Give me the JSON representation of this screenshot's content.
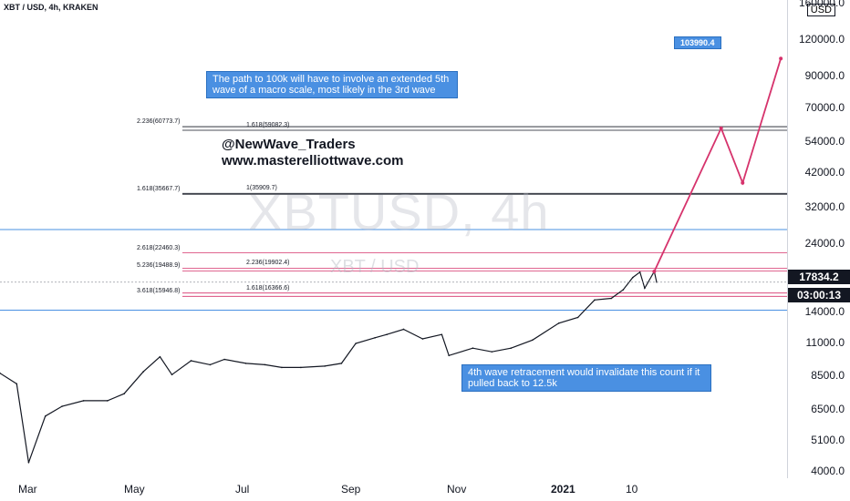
{
  "header": {
    "symbol": "XBT / USD, 4h, KRAKEN"
  },
  "watermark": {
    "big": "XBTUSD, 4h",
    "small": "XBT / USD"
  },
  "brand": {
    "handle": "@NewWave_Traders",
    "site": "www.masterelliottwave.com"
  },
  "annotations": {
    "top": "The path to 100k will have to involve an extended 5th wave of a macro scale, most likely in the 3rd wave",
    "bottom": "4th wave retracement would invalidate this count if it pulled back to 12.5k",
    "target": "103990.4"
  },
  "fib_labels": [
    {
      "text": "2.236(60773.7)",
      "price": 60773.7
    },
    {
      "text": "1.618(59082.3)",
      "price": 59082.3
    },
    {
      "text": "1.618(35667.7)",
      "price": 35667.7
    },
    {
      "text": "1(35909.7)",
      "price": 35909.7
    },
    {
      "text": "2.618(22460.3)",
      "price": 22460.3
    },
    {
      "text": "2.236(19902.4)",
      "price": 19902.4
    },
    {
      "text": "5.236(19488.9)",
      "price": 19488.9
    },
    {
      "text": "1.618(16366.6)",
      "price": 16366.6
    },
    {
      "text": "3.618(15946.8)",
      "price": 15946.8
    }
  ],
  "price_scale": {
    "currency": "USD",
    "current_price": "17834.2",
    "countdown": "03:00:13",
    "colors": {
      "current_bg": "#131722",
      "blue": "#4a90e2",
      "magenta": "#d6336c"
    }
  },
  "chart_data": {
    "type": "line",
    "y_scale": "log",
    "ylim": [
      3800,
      165000
    ],
    "xlim": [
      "2020-03-01",
      "2021-01-25"
    ],
    "y_ticks": [
      "160000.0",
      "120000.0",
      "90000.0",
      "70000.0",
      "54000.0",
      "42000.0",
      "32000.0",
      "24000.0",
      "14000.0",
      "11000.0",
      "8500.0",
      "6500.0",
      "5100.0",
      "4000.0"
    ],
    "x_ticks": [
      "Mar",
      "May",
      "Jul",
      "Sep",
      "Nov",
      "2021",
      "10"
    ],
    "series": [
      {
        "values": [
          [
            "2020-03-01",
            8700
          ],
          [
            "2020-03-08",
            8000
          ],
          [
            "2020-03-13",
            4300
          ],
          [
            "2020-03-20",
            6200
          ],
          [
            "2020-03-27",
            6700
          ],
          [
            "2020-04-05",
            7000
          ],
          [
            "2020-04-15",
            7000
          ],
          [
            "2020-04-22",
            7400
          ],
          [
            "2020-04-30",
            8800
          ],
          [
            "2020-05-07",
            9900
          ],
          [
            "2020-05-12",
            8600
          ],
          [
            "2020-05-20",
            9600
          ],
          [
            "2020-05-28",
            9300
          ],
          [
            "2020-06-03",
            9700
          ],
          [
            "2020-06-12",
            9400
          ],
          [
            "2020-06-20",
            9300
          ],
          [
            "2020-06-27",
            9100
          ],
          [
            "2020-07-05",
            9100
          ],
          [
            "2020-07-15",
            9200
          ],
          [
            "2020-07-22",
            9400
          ],
          [
            "2020-07-28",
            11000
          ],
          [
            "2020-08-05",
            11500
          ],
          [
            "2020-08-10",
            11800
          ],
          [
            "2020-08-17",
            12300
          ],
          [
            "2020-08-25",
            11400
          ],
          [
            "2020-09-02",
            11800
          ],
          [
            "2020-09-05",
            10000
          ],
          [
            "2020-09-15",
            10600
          ],
          [
            "2020-09-23",
            10300
          ],
          [
            "2020-10-01",
            10600
          ],
          [
            "2020-10-10",
            11300
          ],
          [
            "2020-10-21",
            12900
          ],
          [
            "2020-10-29",
            13500
          ],
          [
            "2020-11-05",
            15500
          ],
          [
            "2020-11-12",
            15700
          ],
          [
            "2020-11-17",
            16800
          ],
          [
            "2020-11-21",
            18500
          ],
          [
            "2020-11-24",
            19300
          ],
          [
            "2020-11-26",
            17000
          ],
          [
            "2020-11-30",
            19400
          ],
          [
            "2020-12-01",
            17834
          ]
        ]
      }
    ],
    "projection": [
      [
        "2020-11-30",
        19400
      ],
      [
        "2020-12-28",
        60000
      ],
      [
        "2021-01-06",
        39000
      ],
      [
        "2021-01-22",
        103990
      ]
    ]
  }
}
